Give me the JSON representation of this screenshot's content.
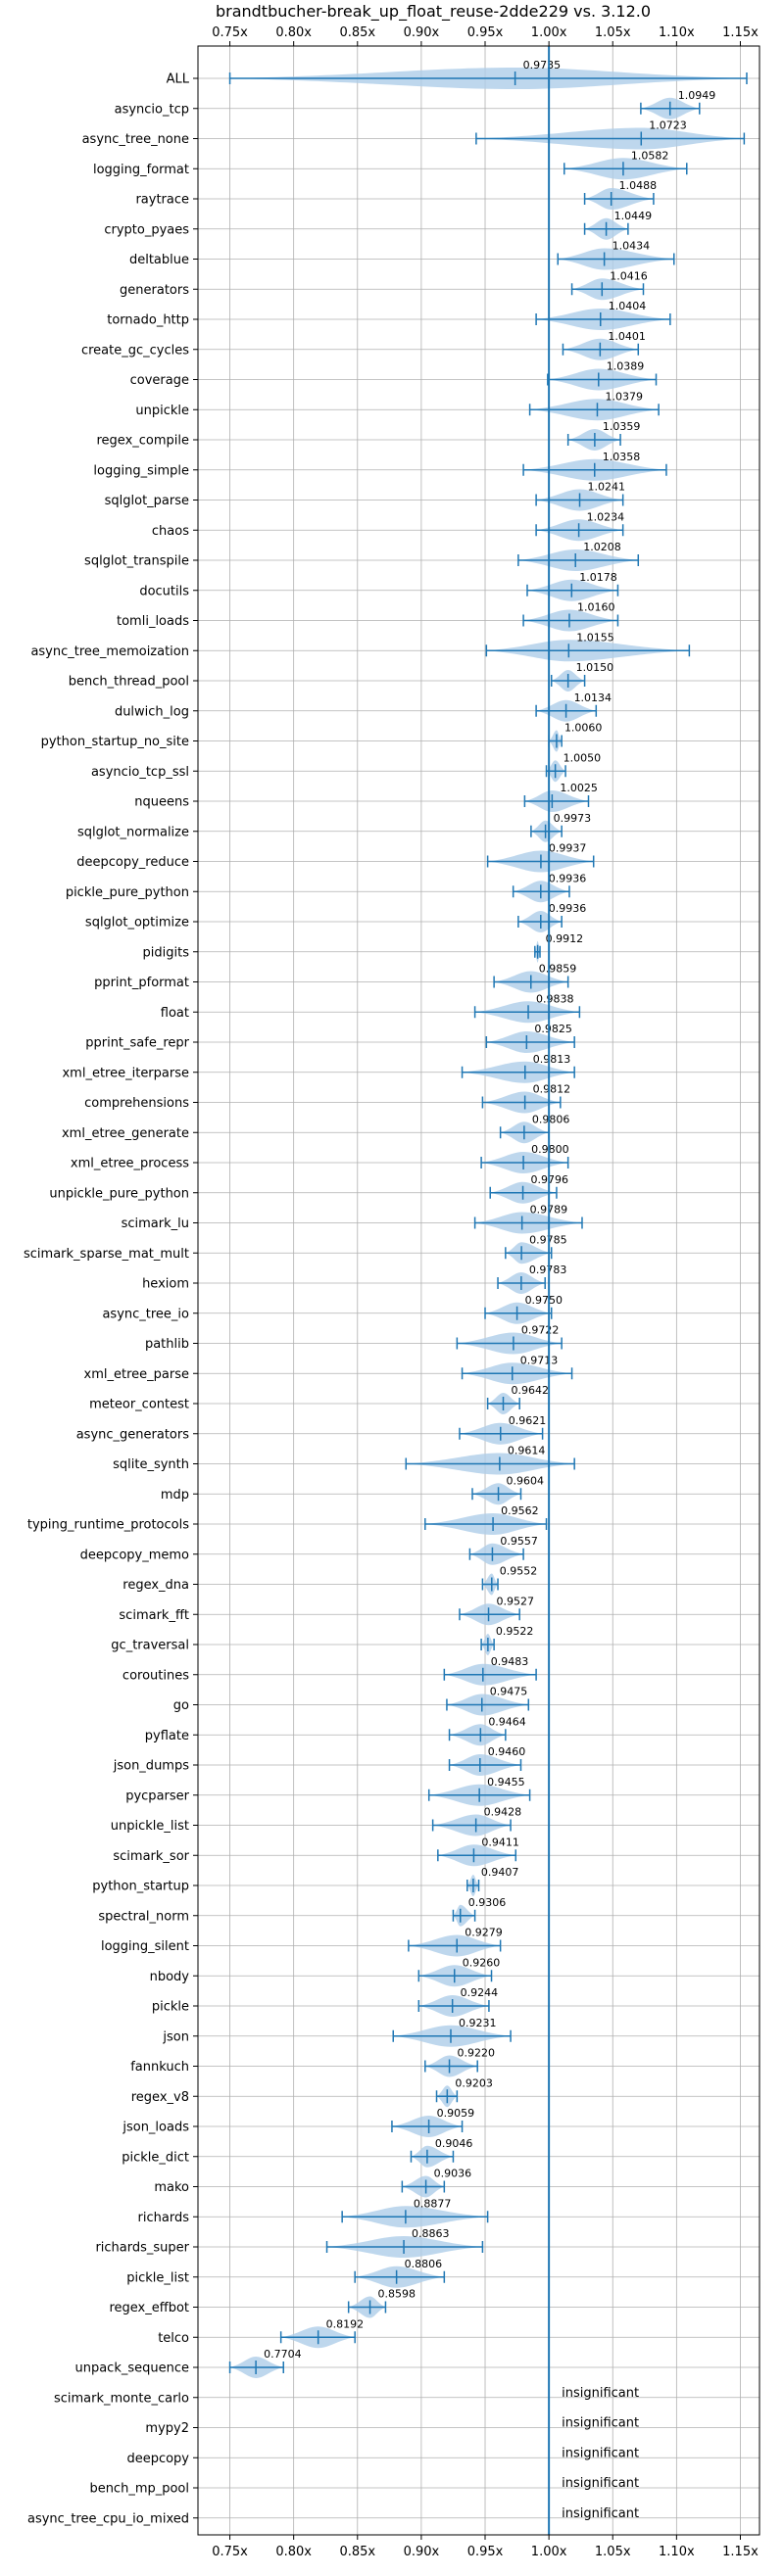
{
  "chart_data": {
    "type": "violin",
    "title": "brandtbucher-break_up_float_reuse-2dde229 vs. 3.12.0",
    "xlim": [
      0.725,
      1.165
    ],
    "xticks": [
      "0.75x",
      "0.80x",
      "0.85x",
      "0.90x",
      "0.95x",
      "1.00x",
      "1.05x",
      "1.10x",
      "1.15x"
    ],
    "xtick_values": [
      0.75,
      0.8,
      0.85,
      0.9,
      0.95,
      1.0,
      1.05,
      1.1,
      1.15
    ],
    "reference_line": 1.0,
    "grid": true,
    "colors": {
      "violin": "#aecde8",
      "line": "#1f77b4"
    },
    "benchmarks": [
      {
        "name": "ALL",
        "value": 0.9735,
        "label": "0.9735",
        "min": 0.75,
        "max": 1.155
      },
      {
        "name": "asyncio_tcp",
        "value": 1.0949,
        "label": "1.0949",
        "min": 1.072,
        "max": 1.118
      },
      {
        "name": "async_tree_none",
        "value": 1.0723,
        "label": "1.0723",
        "min": 0.943,
        "max": 1.153
      },
      {
        "name": "logging_format",
        "value": 1.0582,
        "label": "1.0582",
        "min": 1.012,
        "max": 1.108
      },
      {
        "name": "raytrace",
        "value": 1.0488,
        "label": "1.0488",
        "min": 1.028,
        "max": 1.082
      },
      {
        "name": "crypto_pyaes",
        "value": 1.0449,
        "label": "1.0449",
        "min": 1.028,
        "max": 1.062
      },
      {
        "name": "deltablue",
        "value": 1.0434,
        "label": "1.0434",
        "min": 1.007,
        "max": 1.098
      },
      {
        "name": "generators",
        "value": 1.0416,
        "label": "1.0416",
        "min": 1.018,
        "max": 1.074
      },
      {
        "name": "tornado_http",
        "value": 1.0404,
        "label": "1.0404",
        "min": 0.99,
        "max": 1.095
      },
      {
        "name": "create_gc_cycles",
        "value": 1.0401,
        "label": "1.0401",
        "min": 1.011,
        "max": 1.07
      },
      {
        "name": "coverage",
        "value": 1.0389,
        "label": "1.0389",
        "min": 0.999,
        "max": 1.084
      },
      {
        "name": "unpickle",
        "value": 1.0379,
        "label": "1.0379",
        "min": 0.985,
        "max": 1.086
      },
      {
        "name": "regex_compile",
        "value": 1.0359,
        "label": "1.0359",
        "min": 1.015,
        "max": 1.056
      },
      {
        "name": "logging_simple",
        "value": 1.0358,
        "label": "1.0358",
        "min": 0.98,
        "max": 1.092
      },
      {
        "name": "sqlglot_parse",
        "value": 1.0241,
        "label": "1.0241",
        "min": 0.99,
        "max": 1.058
      },
      {
        "name": "chaos",
        "value": 1.0234,
        "label": "1.0234",
        "min": 0.99,
        "max": 1.058
      },
      {
        "name": "sqlglot_transpile",
        "value": 1.0208,
        "label": "1.0208",
        "min": 0.976,
        "max": 1.07
      },
      {
        "name": "docutils",
        "value": 1.0178,
        "label": "1.0178",
        "min": 0.983,
        "max": 1.054
      },
      {
        "name": "tomli_loads",
        "value": 1.016,
        "label": "1.0160",
        "min": 0.98,
        "max": 1.054
      },
      {
        "name": "async_tree_memoization",
        "value": 1.0155,
        "label": "1.0155",
        "min": 0.951,
        "max": 1.11
      },
      {
        "name": "bench_thread_pool",
        "value": 1.015,
        "label": "1.0150",
        "min": 1.002,
        "max": 1.028
      },
      {
        "name": "dulwich_log",
        "value": 1.0134,
        "label": "1.0134",
        "min": 0.99,
        "max": 1.037
      },
      {
        "name": "python_startup_no_site",
        "value": 1.006,
        "label": "1.0060",
        "min": 1.0,
        "max": 1.01
      },
      {
        "name": "asyncio_tcp_ssl",
        "value": 1.005,
        "label": "1.0050",
        "min": 0.998,
        "max": 1.013
      },
      {
        "name": "nqueens",
        "value": 1.0025,
        "label": "1.0025",
        "min": 0.981,
        "max": 1.031
      },
      {
        "name": "sqlglot_normalize",
        "value": 0.9973,
        "label": "0.9973",
        "min": 0.986,
        "max": 1.01
      },
      {
        "name": "deepcopy_reduce",
        "value": 0.9937,
        "label": "0.9937",
        "min": 0.952,
        "max": 1.035
      },
      {
        "name": "pickle_pure_python",
        "value": 0.9936,
        "label": "0.9936",
        "min": 0.972,
        "max": 1.016
      },
      {
        "name": "sqlglot_optimize",
        "value": 0.9936,
        "label": "0.9936",
        "min": 0.976,
        "max": 1.01
      },
      {
        "name": "pidigits",
        "value": 0.9912,
        "label": "0.9912",
        "min": 0.989,
        "max": 0.993
      },
      {
        "name": "pprint_pformat",
        "value": 0.9859,
        "label": "0.9859",
        "min": 0.957,
        "max": 1.015
      },
      {
        "name": "float",
        "value": 0.9838,
        "label": "0.9838",
        "min": 0.942,
        "max": 1.024
      },
      {
        "name": "pprint_safe_repr",
        "value": 0.9825,
        "label": "0.9825",
        "min": 0.951,
        "max": 1.02
      },
      {
        "name": "xml_etree_iterparse",
        "value": 0.9813,
        "label": "0.9813",
        "min": 0.932,
        "max": 1.02
      },
      {
        "name": "comprehensions",
        "value": 0.9812,
        "label": "0.9812",
        "min": 0.948,
        "max": 1.009
      },
      {
        "name": "xml_etree_generate",
        "value": 0.9806,
        "label": "0.9806",
        "min": 0.962,
        "max": 1.0
      },
      {
        "name": "xml_etree_process",
        "value": 0.98,
        "label": "0.9800",
        "min": 0.947,
        "max": 1.015
      },
      {
        "name": "unpickle_pure_python",
        "value": 0.9796,
        "label": "0.9796",
        "min": 0.954,
        "max": 1.006
      },
      {
        "name": "scimark_lu",
        "value": 0.9789,
        "label": "0.9789",
        "min": 0.942,
        "max": 1.026
      },
      {
        "name": "scimark_sparse_mat_mult",
        "value": 0.9785,
        "label": "0.9785",
        "min": 0.966,
        "max": 1.002
      },
      {
        "name": "hexiom",
        "value": 0.9783,
        "label": "0.9783",
        "min": 0.96,
        "max": 0.997
      },
      {
        "name": "async_tree_io",
        "value": 0.975,
        "label": "0.9750",
        "min": 0.95,
        "max": 1.002
      },
      {
        "name": "pathlib",
        "value": 0.9722,
        "label": "0.9722",
        "min": 0.928,
        "max": 1.01
      },
      {
        "name": "xml_etree_parse",
        "value": 0.9713,
        "label": "0.9713",
        "min": 0.932,
        "max": 1.018
      },
      {
        "name": "meteor_contest",
        "value": 0.9642,
        "label": "0.9642",
        "min": 0.952,
        "max": 0.977
      },
      {
        "name": "async_generators",
        "value": 0.9621,
        "label": "0.9621",
        "min": 0.93,
        "max": 0.995
      },
      {
        "name": "sqlite_synth",
        "value": 0.9614,
        "label": "0.9614",
        "min": 0.888,
        "max": 1.02
      },
      {
        "name": "mdp",
        "value": 0.9604,
        "label": "0.9604",
        "min": 0.94,
        "max": 0.978
      },
      {
        "name": "typing_runtime_protocols",
        "value": 0.9562,
        "label": "0.9562",
        "min": 0.903,
        "max": 0.998
      },
      {
        "name": "deepcopy_memo",
        "value": 0.9557,
        "label": "0.9557",
        "min": 0.938,
        "max": 0.98
      },
      {
        "name": "regex_dna",
        "value": 0.9552,
        "label": "0.9552",
        "min": 0.948,
        "max": 0.96
      },
      {
        "name": "scimark_fft",
        "value": 0.9527,
        "label": "0.9527",
        "min": 0.93,
        "max": 0.977
      },
      {
        "name": "gc_traversal",
        "value": 0.9522,
        "label": "0.9522",
        "min": 0.947,
        "max": 0.957
      },
      {
        "name": "coroutines",
        "value": 0.9483,
        "label": "0.9483",
        "min": 0.918,
        "max": 0.99
      },
      {
        "name": "go",
        "value": 0.9475,
        "label": "0.9475",
        "min": 0.92,
        "max": 0.984
      },
      {
        "name": "pyflate",
        "value": 0.9464,
        "label": "0.9464",
        "min": 0.922,
        "max": 0.966
      },
      {
        "name": "json_dumps",
        "value": 0.946,
        "label": "0.9460",
        "min": 0.922,
        "max": 0.978
      },
      {
        "name": "pycparser",
        "value": 0.9455,
        "label": "0.9455",
        "min": 0.906,
        "max": 0.985
      },
      {
        "name": "unpickle_list",
        "value": 0.9428,
        "label": "0.9428",
        "min": 0.909,
        "max": 0.97
      },
      {
        "name": "scimark_sor",
        "value": 0.9411,
        "label": "0.9411",
        "min": 0.913,
        "max": 0.974
      },
      {
        "name": "python_startup",
        "value": 0.9407,
        "label": "0.9407",
        "min": 0.936,
        "max": 0.945
      },
      {
        "name": "spectral_norm",
        "value": 0.9306,
        "label": "0.9306",
        "min": 0.925,
        "max": 0.942
      },
      {
        "name": "logging_silent",
        "value": 0.9279,
        "label": "0.9279",
        "min": 0.89,
        "max": 0.962
      },
      {
        "name": "nbody",
        "value": 0.926,
        "label": "0.9260",
        "min": 0.898,
        "max": 0.955
      },
      {
        "name": "pickle",
        "value": 0.9244,
        "label": "0.9244",
        "min": 0.898,
        "max": 0.953
      },
      {
        "name": "json",
        "value": 0.9231,
        "label": "0.9231",
        "min": 0.878,
        "max": 0.97
      },
      {
        "name": "fannkuch",
        "value": 0.922,
        "label": "0.9220",
        "min": 0.903,
        "max": 0.944
      },
      {
        "name": "regex_v8",
        "value": 0.9203,
        "label": "0.9203",
        "min": 0.912,
        "max": 0.928
      },
      {
        "name": "json_loads",
        "value": 0.9059,
        "label": "0.9059",
        "min": 0.877,
        "max": 0.932
      },
      {
        "name": "pickle_dict",
        "value": 0.9046,
        "label": "0.9046",
        "min": 0.892,
        "max": 0.925
      },
      {
        "name": "mako",
        "value": 0.9036,
        "label": "0.9036",
        "min": 0.885,
        "max": 0.918
      },
      {
        "name": "richards",
        "value": 0.8877,
        "label": "0.8877",
        "min": 0.838,
        "max": 0.952
      },
      {
        "name": "richards_super",
        "value": 0.8863,
        "label": "0.8863",
        "min": 0.826,
        "max": 0.948
      },
      {
        "name": "pickle_list",
        "value": 0.8806,
        "label": "0.8806",
        "min": 0.848,
        "max": 0.918
      },
      {
        "name": "regex_effbot",
        "value": 0.8598,
        "label": "0.8598",
        "min": 0.843,
        "max": 0.872
      },
      {
        "name": "telco",
        "value": 0.8192,
        "label": "0.8192",
        "min": 0.79,
        "max": 0.848
      },
      {
        "name": "unpack_sequence",
        "value": 0.7704,
        "label": "0.7704",
        "min": 0.75,
        "max": 0.792
      },
      {
        "name": "scimark_monte_carlo",
        "value": null,
        "label": "insignificant"
      },
      {
        "name": "mypy2",
        "value": null,
        "label": "insignificant"
      },
      {
        "name": "deepcopy",
        "value": null,
        "label": "insignificant"
      },
      {
        "name": "bench_mp_pool",
        "value": null,
        "label": "insignificant"
      },
      {
        "name": "async_tree_cpu_io_mixed",
        "value": null,
        "label": "insignificant"
      }
    ]
  }
}
